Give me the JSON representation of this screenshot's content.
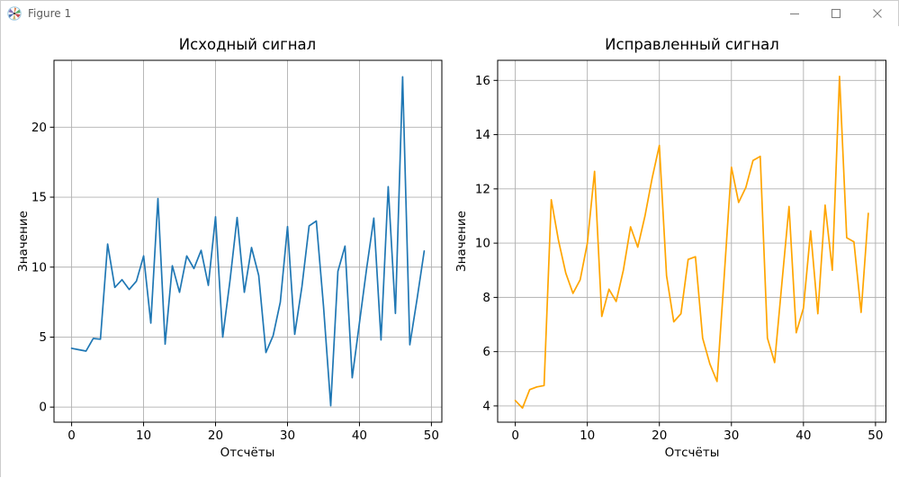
{
  "window": {
    "title": "Figure 1",
    "controls": [
      {
        "icon": "minimize-icon"
      },
      {
        "icon": "maximize-icon"
      },
      {
        "icon": "close-icon"
      }
    ]
  },
  "chart_data": [
    {
      "type": "line",
      "title": "Исходный сигнал",
      "xlabel": "Отсчёты",
      "ylabel": "Значение",
      "line_color": "#1f77b4",
      "grid": true,
      "grid_color": "#b0b0b0",
      "x_values": "sample index 0..49",
      "values": [
        4.2,
        4.1,
        4.0,
        4.9,
        4.85,
        11.65,
        8.55,
        9.1,
        8.4,
        9.0,
        10.8,
        6.0,
        14.9,
        4.5,
        10.1,
        8.2,
        10.8,
        9.9,
        11.2,
        8.7,
        13.6,
        5.0,
        9.0,
        13.55,
        8.2,
        11.4,
        9.4,
        3.9,
        5.1,
        7.5,
        12.9,
        5.2,
        8.6,
        12.95,
        13.3,
        7.2,
        0.1,
        9.7,
        11.5,
        2.1,
        6.0,
        9.9,
        13.5,
        4.8,
        15.75,
        6.7,
        23.6,
        4.45,
        7.7,
        11.15
      ],
      "xticks": [
        0,
        10,
        20,
        30,
        40,
        50
      ],
      "yticks": [
        0,
        5,
        10,
        15,
        20
      ],
      "xlim": [
        -2.45,
        51.45
      ],
      "ylim": [
        -1.08,
        24.78
      ]
    },
    {
      "type": "line",
      "title": "Исправленный сигнал",
      "xlabel": "Отсчёты",
      "ylabel": "Значение",
      "line_color": "#ffa500",
      "grid": true,
      "grid_color": "#b0b0b0",
      "x_values": "sample index 0..49",
      "values": [
        4.2,
        3.92,
        4.6,
        4.7,
        4.75,
        11.6,
        10.1,
        8.9,
        8.15,
        8.65,
        10.0,
        12.65,
        7.3,
        8.3,
        7.85,
        9.0,
        10.6,
        9.85,
        11.0,
        12.4,
        13.6,
        8.8,
        7.1,
        7.4,
        9.4,
        9.5,
        6.5,
        5.55,
        4.9,
        8.8,
        12.8,
        11.5,
        12.05,
        13.05,
        13.2,
        6.5,
        5.6,
        8.5,
        11.35,
        6.7,
        7.6,
        10.45,
        7.4,
        11.4,
        9.0,
        16.15,
        10.2,
        10.05,
        7.45,
        11.1
      ],
      "xticks": [
        0,
        10,
        20,
        30,
        40,
        50
      ],
      "yticks": [
        4,
        6,
        8,
        10,
        12,
        14,
        16
      ],
      "xlim": [
        -2.45,
        51.45
      ],
      "ylim": [
        3.4,
        16.74
      ]
    }
  ]
}
